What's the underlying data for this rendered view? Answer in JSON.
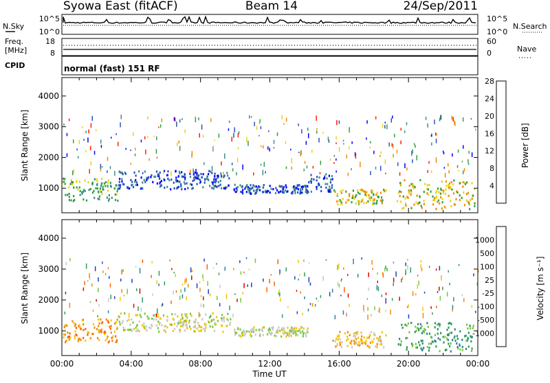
{
  "header": {
    "station": "Syowa East (fitACF)",
    "beam": "Beam 14",
    "date": "24/Sep/2011"
  },
  "chart_data": [
    {
      "type": "line",
      "panel": "noise",
      "left_label": "N.Sky",
      "right_label": "N.Search",
      "left_ticks": [
        "10^5",
        "10^0"
      ],
      "right_ticks": [
        "10^5",
        "10^0"
      ],
      "xlim": [
        0,
        24
      ]
    },
    {
      "type": "scatter",
      "panel": "frequency",
      "left_label": "Freq.",
      "left_unit": "[MHz]",
      "right_label": "Nave",
      "left_ticks": [
        "18",
        "8"
      ],
      "right_ticks": [
        "60",
        "0"
      ],
      "xlim": [
        0,
        24
      ]
    },
    {
      "type": "table",
      "panel": "cpid",
      "label": "CPID",
      "value": "normal (fast) 151 RF"
    },
    {
      "type": "heatmap",
      "panel": "power",
      "ylabel": "Slant Range [km]",
      "yticks": [
        "1000",
        "2000",
        "3000",
        "4000"
      ],
      "ylim": [
        200,
        4600
      ],
      "colorbar_label": "Power [dB]",
      "colorbar_ticks": [
        "4",
        "8",
        "12",
        "16",
        "20",
        "24",
        "28"
      ],
      "colors": [
        "#0000ff",
        "#2a52be",
        "#3f8f86",
        "#33a03c",
        "#e8d21a",
        "#f28a00",
        "#ff2000"
      ],
      "features": [
        {
          "t0": 0,
          "t1": 3.2,
          "r0": 600,
          "r1": 1350,
          "level": 3
        },
        {
          "t0": 3.2,
          "t1": 9.7,
          "r0": 1000,
          "r1": 1600,
          "level": 1
        },
        {
          "t0": 9.9,
          "t1": 14.2,
          "r0": 850,
          "r1": 1150,
          "level": 1
        },
        {
          "t0": 14.2,
          "t1": 15.6,
          "r0": 900,
          "r1": 1500,
          "level": 1
        },
        {
          "t0": 15.6,
          "t1": 18.7,
          "r0": 500,
          "r1": 1000,
          "level": 4
        },
        {
          "t0": 19.3,
          "t1": 23.8,
          "r0": 350,
          "r1": 1300,
          "level": 4
        }
      ]
    },
    {
      "type": "heatmap",
      "panel": "velocity",
      "ylabel": "Slant Range [km]",
      "yticks": [
        "1000",
        "2000",
        "3000",
        "4000"
      ],
      "ylim": [
        200,
        4600
      ],
      "colorbar_label": "Velocity [m s⁻¹]",
      "colorbar_ticks": [
        "1000",
        "500",
        "100",
        "25",
        "-25",
        "-100",
        "-500",
        "-1000"
      ],
      "colors": [
        "#1f3fbf",
        "#2f7fa0",
        "#2e9a5a",
        "#77c83c",
        "#c8c8c8",
        "#f5c400",
        "#f28a00",
        "#ff6000",
        "#e00000"
      ],
      "xticks": [
        "00:00",
        "04:00",
        "08:00",
        "12:00",
        "16:00",
        "20:00",
        "00:00"
      ],
      "xlabel": "Time UT",
      "xlim": [
        0,
        24
      ],
      "features": [
        {
          "t0": 0,
          "t1": 3.2,
          "r0": 650,
          "r1": 1450,
          "level": 6
        },
        {
          "t0": 3.2,
          "t1": 9.7,
          "r0": 1000,
          "r1": 1600,
          "level": 4
        },
        {
          "t0": 9.9,
          "t1": 14.2,
          "r0": 850,
          "r1": 1150,
          "level": 4
        },
        {
          "t0": 15.6,
          "t1": 18.7,
          "r0": 500,
          "r1": 1000,
          "level": 5
        },
        {
          "t0": 19.3,
          "t1": 23.8,
          "r0": 350,
          "r1": 1300,
          "level": 2
        }
      ]
    }
  ]
}
